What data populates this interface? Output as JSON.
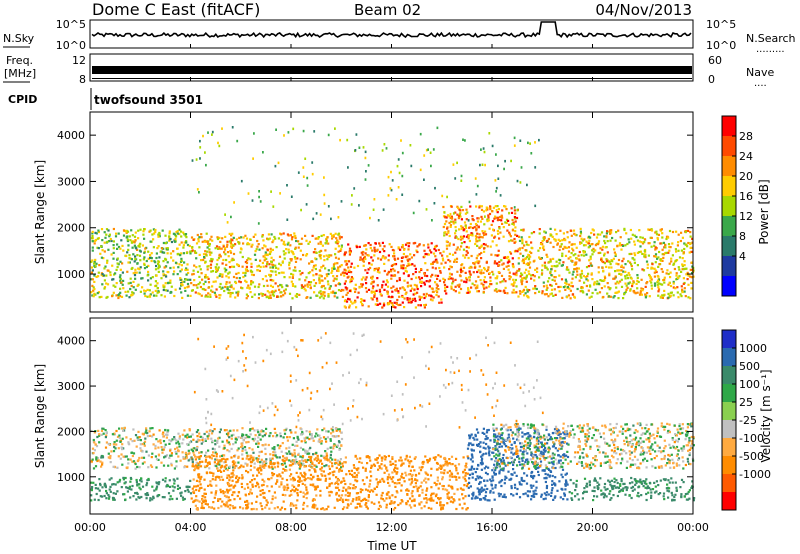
{
  "header": {
    "site": "Dome C East (fitACF)",
    "beam": "Beam 02",
    "date": "04/Nov/2013"
  },
  "noise_panel": {
    "left_label": "N.Sky",
    "right_label": "N.Search",
    "right_dots": ".........",
    "y_top": "10^5",
    "y_bottom": "10^0"
  },
  "freq_panel": {
    "left_label_1": "Freq.",
    "left_label_2": "[MHz]",
    "left_top": "12",
    "left_bottom": "8",
    "right_label": "Nave",
    "right_dots": "....",
    "right_top": "60",
    "right_bottom": "0"
  },
  "cpid": {
    "label": "CPID",
    "value": "twofsound 3501"
  },
  "power_colorbar": {
    "label": "Power [dB]",
    "ticks": [
      "28",
      "24",
      "20",
      "16",
      "12",
      "8",
      "4"
    ],
    "colors": [
      "#ff0000",
      "#ff4a00",
      "#ff8c00",
      "#ffcc00",
      "#a8d800",
      "#3aa84a",
      "#2a7a6a",
      "#1e3aa0",
      "#0000ff"
    ]
  },
  "velocity_colorbar": {
    "label": "Velocity [m s⁻¹]",
    "ticks": [
      "1000",
      "500",
      "100",
      "25",
      "-25",
      "-100",
      "-500",
      "-1000"
    ],
    "colors": [
      "#1f2ec8",
      "#2a6ab0",
      "#3a8a6a",
      "#2fa848",
      "#8ad050",
      "#c0c0c0",
      "#ffaa40",
      "#ff8c00",
      "#ff5a00",
      "#ff0000"
    ]
  },
  "axes": {
    "ylabel": "Slant Range [km]",
    "xlabel": "Time UT",
    "yticks": [
      "4000",
      "3000",
      "2000",
      "1000"
    ],
    "xticks": [
      "00:00",
      "04:00",
      "08:00",
      "12:00",
      "16:00",
      "20:00",
      "00:00"
    ]
  },
  "chart_data": [
    {
      "type": "heatmap",
      "title": "",
      "quantity": "Power [dB]",
      "xlabel": "Time UT",
      "ylabel": "Slant Range [km]",
      "x_range": [
        "00:00",
        "24:00"
      ],
      "ylim": [
        180,
        4500
      ],
      "colorbar_range": [
        0,
        32
      ],
      "regions": [
        {
          "t_start": 0,
          "t_end": 4,
          "range_min": 500,
          "range_max": 2000,
          "level": 16
        },
        {
          "t_start": 4,
          "t_end": 10,
          "range_min": 500,
          "range_max": 1900,
          "level": 20
        },
        {
          "t_start": 10,
          "t_end": 14,
          "range_min": 300,
          "range_max": 1700,
          "level": 26
        },
        {
          "t_start": 14,
          "t_end": 17,
          "range_min": 600,
          "range_max": 2500,
          "level": 24
        },
        {
          "t_start": 17,
          "t_end": 24,
          "range_min": 500,
          "range_max": 2000,
          "level": 20
        }
      ]
    },
    {
      "type": "heatmap",
      "title": "",
      "quantity": "Velocity [m s^-1]",
      "xlabel": "Time UT",
      "ylabel": "Slant Range [km]",
      "x_range": [
        "00:00",
        "24:00"
      ],
      "ylim": [
        180,
        4500
      ],
      "colorbar_range": [
        -1000,
        1000
      ],
      "regions": [
        {
          "t_start": 0,
          "t_end": 4,
          "range_min": 500,
          "range_max": 1000,
          "velocity": 100
        },
        {
          "t_start": 0,
          "t_end": 10,
          "range_min": 1200,
          "range_max": 2100,
          "velocity": 0
        },
        {
          "t_start": 4,
          "t_end": 15,
          "range_min": 300,
          "range_max": 1500,
          "velocity": -100
        },
        {
          "t_start": 15,
          "t_end": 19,
          "range_min": 500,
          "range_max": 2100,
          "velocity": 500
        },
        {
          "t_start": 19,
          "t_end": 24,
          "range_min": 500,
          "range_max": 1000,
          "velocity": 100
        },
        {
          "t_start": 16,
          "t_end": 24,
          "range_min": 1200,
          "range_max": 2200,
          "velocity": 0
        }
      ]
    }
  ]
}
